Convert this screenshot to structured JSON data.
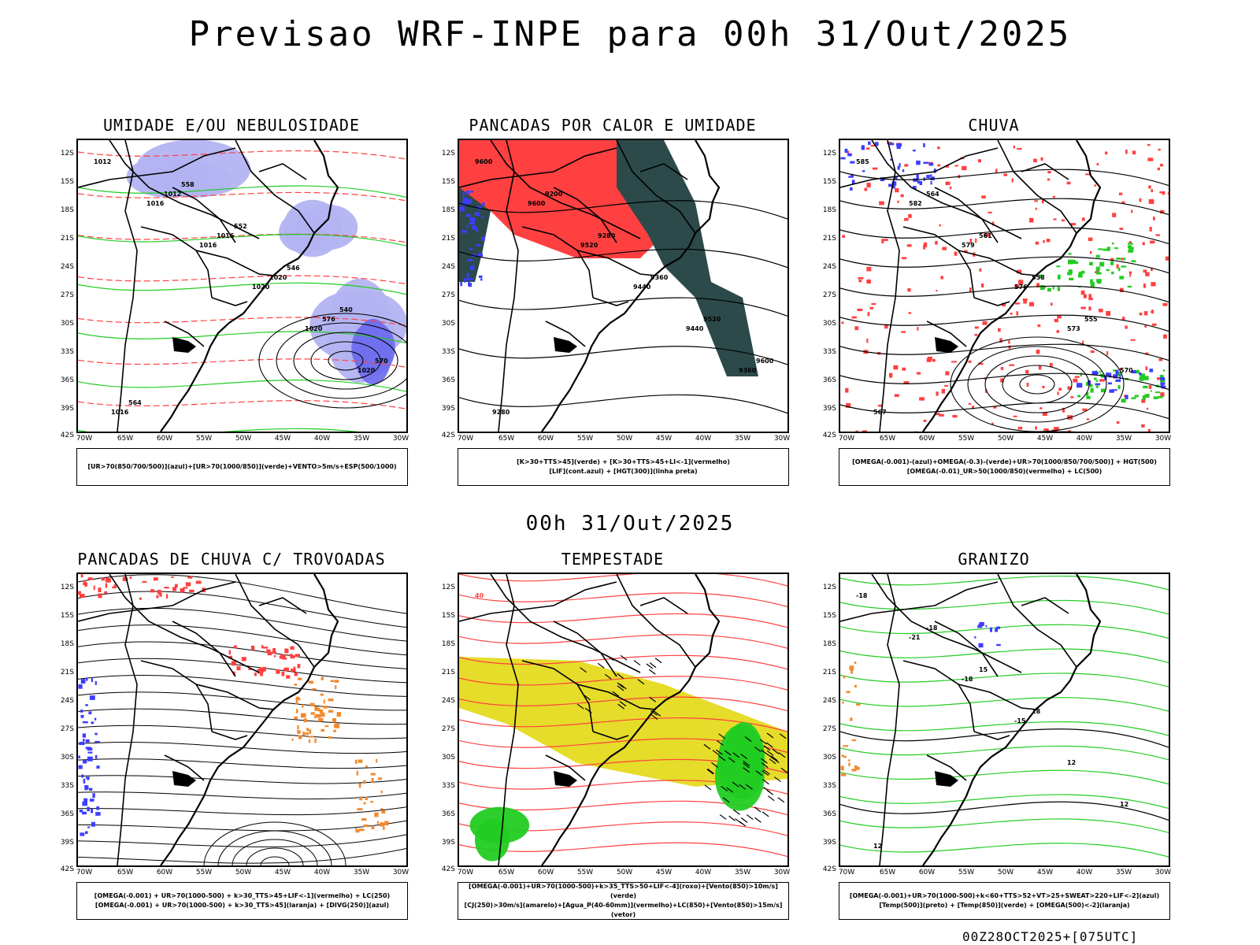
{
  "title": "Previsao WRF-INPE  para 00h 31/Out/2025",
  "subtitle": "00h 31/Out/2025",
  "footer": "00Z28OCT2025+[075UTC]",
  "lat_labels": [
    "12S",
    "15S",
    "18S",
    "21S",
    "24S",
    "27S",
    "30S",
    "33S",
    "36S",
    "39S",
    "42S"
  ],
  "lon_labels": [
    "70W",
    "65W",
    "60W",
    "55W",
    "50W",
    "45W",
    "40W",
    "35W",
    "30W"
  ],
  "colors": {
    "blue": "#3d3dff",
    "lightblue": "#b3b3f2",
    "green": "#22cc22",
    "red": "#ff4040",
    "orange": "#f08a30",
    "yellow": "#e6dc2a",
    "darkteal": "#2c4a4a"
  },
  "panels": [
    {
      "title": "UMIDADE E/OU NEBULOSIDADE",
      "legend": [
        "[UR>70(850/700/500)](azul)+[UR>70(1000/850)](verde)+VENTO>5m/s+ESP(500/1000)"
      ],
      "labels": [
        "1012",
        "1016",
        "1016",
        "1020",
        "1020",
        "1020",
        "1016",
        "1012",
        "1016",
        "1020",
        "576",
        "570",
        "564",
        "558",
        "552",
        "546",
        "540"
      ]
    },
    {
      "title": "PANCADAS POR CALOR E UMIDADE",
      "legend": [
        "[K>30+TTS>45](verde) + [K>30+TTS>45+LI<-1](vermelho)",
        "[LIF](cont.azul) + [HGT(300)](linha preta)"
      ],
      "labels": [
        "9600",
        "9600",
        "9520",
        "9440",
        "9440",
        "9360",
        "9280",
        "9200",
        "9280",
        "9360",
        "9520",
        "9600"
      ]
    },
    {
      "title": "CHUVA",
      "legend": [
        "[OMEGA(-0.001)-(azul)+OMEGA(-0.3)-(verde)+UR>70(1000/850/700/500)] + HGT(500)",
        "[OMEGA(-0.01)_UR>50(1000/850)(vermelho) + LC(500)"
      ],
      "labels": [
        "585",
        "582",
        "579",
        "576",
        "573",
        "570",
        "567",
        "564",
        "561",
        "558",
        "555"
      ]
    },
    {
      "title": "PANCADAS DE CHUVA C/ TROVOADAS",
      "legend": [
        "[OMEGA(-0.001) + UR>70(1000-500) + k>30_TTS>45+LIF<-1](vermelho) + LC(250)",
        "[OMEGA(-0.001) + UR>70(1000-500) + k>30_TTS>45](laranja) + [DIVG(250)](azul)"
      ],
      "labels": []
    },
    {
      "title": "TEMPESTADE",
      "legend": [
        "[OMEGA(-0.001)+UR>70(1000-500)+k>35_TTS>50+LIF<-4](roxo)+[Vento(850)>10m/s](verde)",
        "[CJ(250)>30m/s](amarelo)+[Agua_P(40-60mm)](vermelho)+LC(850)+[Vento(850)>15m/s](vetor)"
      ],
      "labels": [
        "40"
      ]
    },
    {
      "title": "GRANIZO",
      "legend": [
        "[OMEGA(-0.001)+UR>70(1000-500)+k<60+TTS>52+VT>25+SWEAT>220+LIF<-2](azul)",
        "[Temp(500)](preto) + [Temp(850)](verde) + [OMEGA(500)<-2](laranja)"
      ],
      "labels": [
        "-18",
        "-21",
        "-18",
        "-15",
        "12",
        "12",
        "12",
        "-18",
        "15",
        "18"
      ]
    }
  ]
}
